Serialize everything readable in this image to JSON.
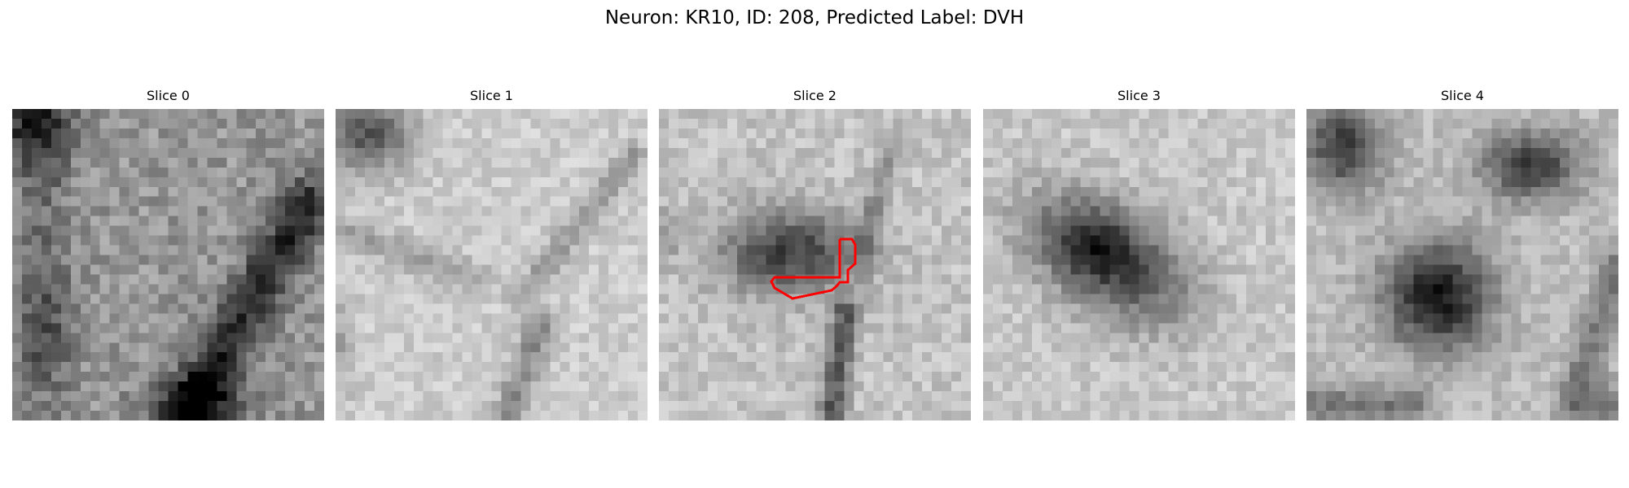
{
  "figure": {
    "title": "Neuron: KR10, ID: 208, Predicted Label: DVH"
  },
  "panels": [
    {
      "title": "Slice 0",
      "has_outline": false
    },
    {
      "title": "Slice 1",
      "has_outline": false
    },
    {
      "title": "Slice 2",
      "has_outline": true
    },
    {
      "title": "Slice 3",
      "has_outline": false
    },
    {
      "title": "Slice 4",
      "has_outline": false
    }
  ],
  "colors": {
    "outline": "#ff0000",
    "colormap": "grayscale"
  }
}
